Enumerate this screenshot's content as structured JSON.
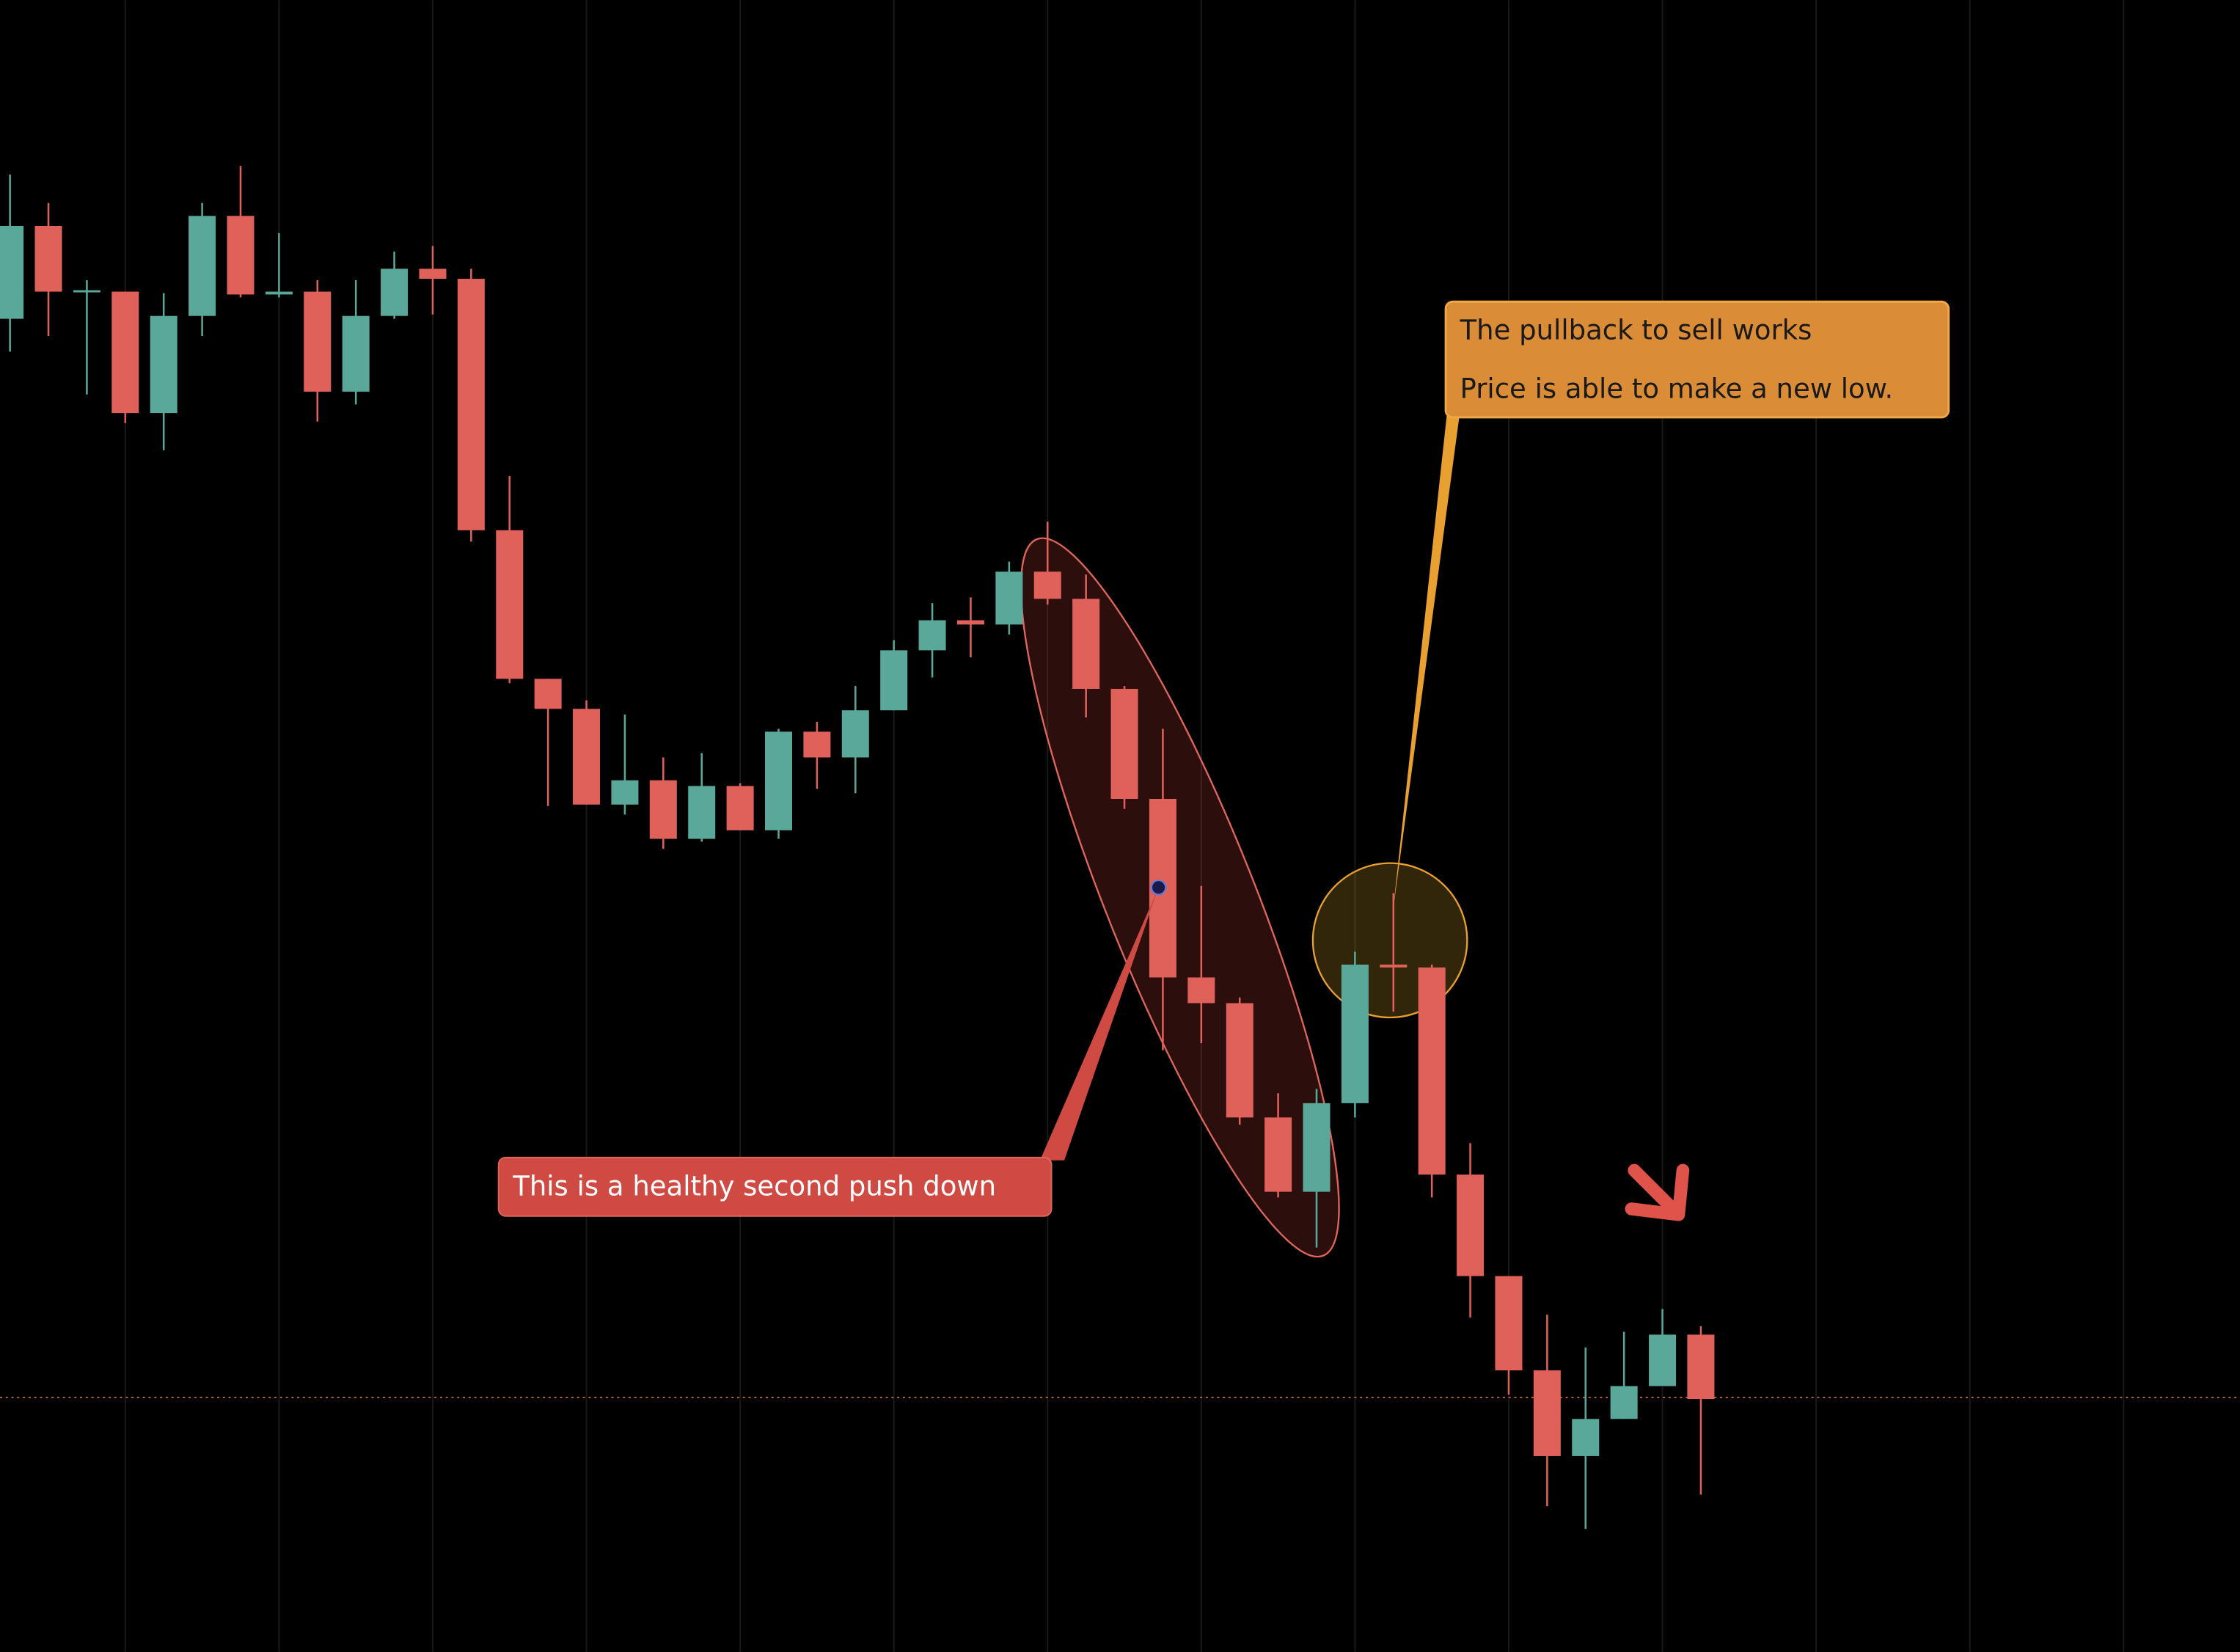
{
  "chart_data": {
    "type": "candlestick",
    "ylim": [
      0,
      1156
    ],
    "grid": true,
    "up_color": "#5aa89a",
    "down_color": "#e0605a",
    "price_line": {
      "value": 178,
      "color": "#c8622e"
    },
    "open": [
      933,
      998,
      952,
      952,
      867,
      935,
      1005,
      950,
      952,
      882,
      935,
      968,
      961,
      785,
      681,
      660,
      593,
      610,
      569,
      606,
      575,
      644,
      626,
      659,
      701,
      722,
      719,
      756,
      737,
      674,
      597,
      472,
      454,
      374,
      322,
      384,
      481,
      479,
      334,
      263,
      197,
      137,
      163,
      186,
      222
    ],
    "high": [
      1034,
      1014,
      960,
      952,
      951,
      1014,
      1040,
      993,
      960,
      960,
      980,
      984,
      968,
      823,
      681,
      666,
      656,
      626,
      629,
      608,
      646,
      651,
      676,
      708,
      734,
      738,
      763,
      791,
      754,
      676,
      646,
      536,
      458,
      391,
      394,
      490,
      531,
      481,
      356,
      263,
      236,
      213,
      224,
      240,
      228
    ],
    "low": [
      910,
      921,
      880,
      860,
      841,
      921,
      948,
      948,
      861,
      873,
      933,
      936,
      777,
      678,
      592,
      593,
      586,
      562,
      567,
      575,
      569,
      604,
      601,
      659,
      682,
      696,
      712,
      733,
      654,
      590,
      421,
      426,
      369,
      318,
      283,
      374,
      448,
      318,
      234,
      180,
      102,
      86,
      163,
      186,
      110
    ],
    "close": [
      998,
      952,
      953,
      867,
      935,
      1005,
      950,
      952,
      882,
      935,
      968,
      961,
      785,
      681,
      660,
      593,
      610,
      569,
      606,
      575,
      644,
      626,
      659,
      701,
      722,
      719,
      756,
      737,
      674,
      597,
      472,
      454,
      374,
      322,
      384,
      481,
      479,
      334,
      263,
      197,
      137,
      163,
      186,
      222,
      177
    ],
    "annotations": [
      "This is a healthy second push down",
      "The pullback to sell works",
      "Price is able to make a new low."
    ]
  }
}
